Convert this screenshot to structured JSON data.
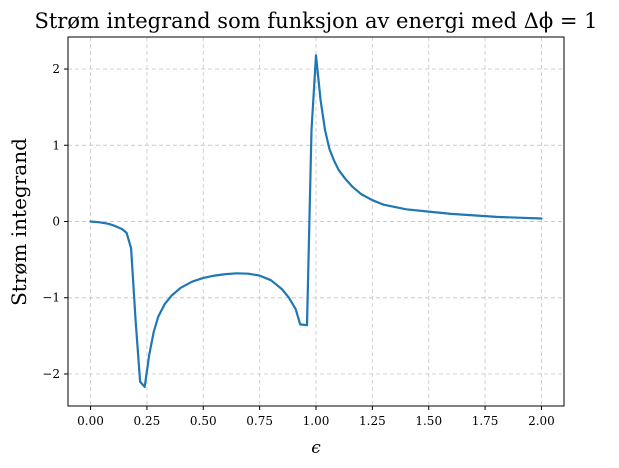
{
  "chart_data": {
    "type": "line",
    "title": "Strøm integrand som funksjon av energi med Δϕ = 1",
    "xlabel": "ϵ",
    "ylabel": "Strøm integrand",
    "xlim": [
      -0.1,
      2.1
    ],
    "ylim": [
      -2.42,
      2.42
    ],
    "x_ticks": [
      0.0,
      0.25,
      0.5,
      0.75,
      1.0,
      1.25,
      1.5,
      1.75,
      2.0
    ],
    "x_tick_labels": [
      "0.00",
      "0.25",
      "0.50",
      "0.75",
      "1.00",
      "1.25",
      "1.50",
      "1.75",
      "2.00"
    ],
    "y_ticks": [
      -2,
      -1,
      0,
      1,
      2
    ],
    "y_tick_labels": [
      "−2",
      "−1",
      "0",
      "1",
      "2"
    ],
    "grid": true,
    "color": "#1f77b4",
    "series": [
      {
        "x": [
          0.0,
          0.04,
          0.08,
          0.11,
          0.14,
          0.16,
          0.18,
          0.2,
          0.22,
          0.24,
          0.26,
          0.28,
          0.3,
          0.33,
          0.36,
          0.4,
          0.45,
          0.5,
          0.55,
          0.6,
          0.65,
          0.7,
          0.75,
          0.8,
          0.85,
          0.88,
          0.91,
          0.93,
          0.96,
          0.98,
          1.0,
          1.02,
          1.04,
          1.06,
          1.08,
          1.1,
          1.13,
          1.16,
          1.2,
          1.25,
          1.3,
          1.4,
          1.5,
          1.6,
          1.7,
          1.8,
          1.9,
          2.0
        ],
        "y": [
          0.0,
          -0.01,
          -0.03,
          -0.06,
          -0.1,
          -0.15,
          -0.35,
          -1.3,
          -2.1,
          -2.17,
          -1.75,
          -1.45,
          -1.25,
          -1.08,
          -0.97,
          -0.87,
          -0.79,
          -0.74,
          -0.71,
          -0.69,
          -0.68,
          -0.685,
          -0.71,
          -0.77,
          -0.89,
          -1.0,
          -1.15,
          -1.35,
          -1.36,
          1.2,
          2.18,
          1.6,
          1.2,
          0.95,
          0.8,
          0.68,
          0.56,
          0.46,
          0.36,
          0.28,
          0.22,
          0.16,
          0.13,
          0.1,
          0.08,
          0.06,
          0.05,
          0.04
        ]
      }
    ]
  }
}
